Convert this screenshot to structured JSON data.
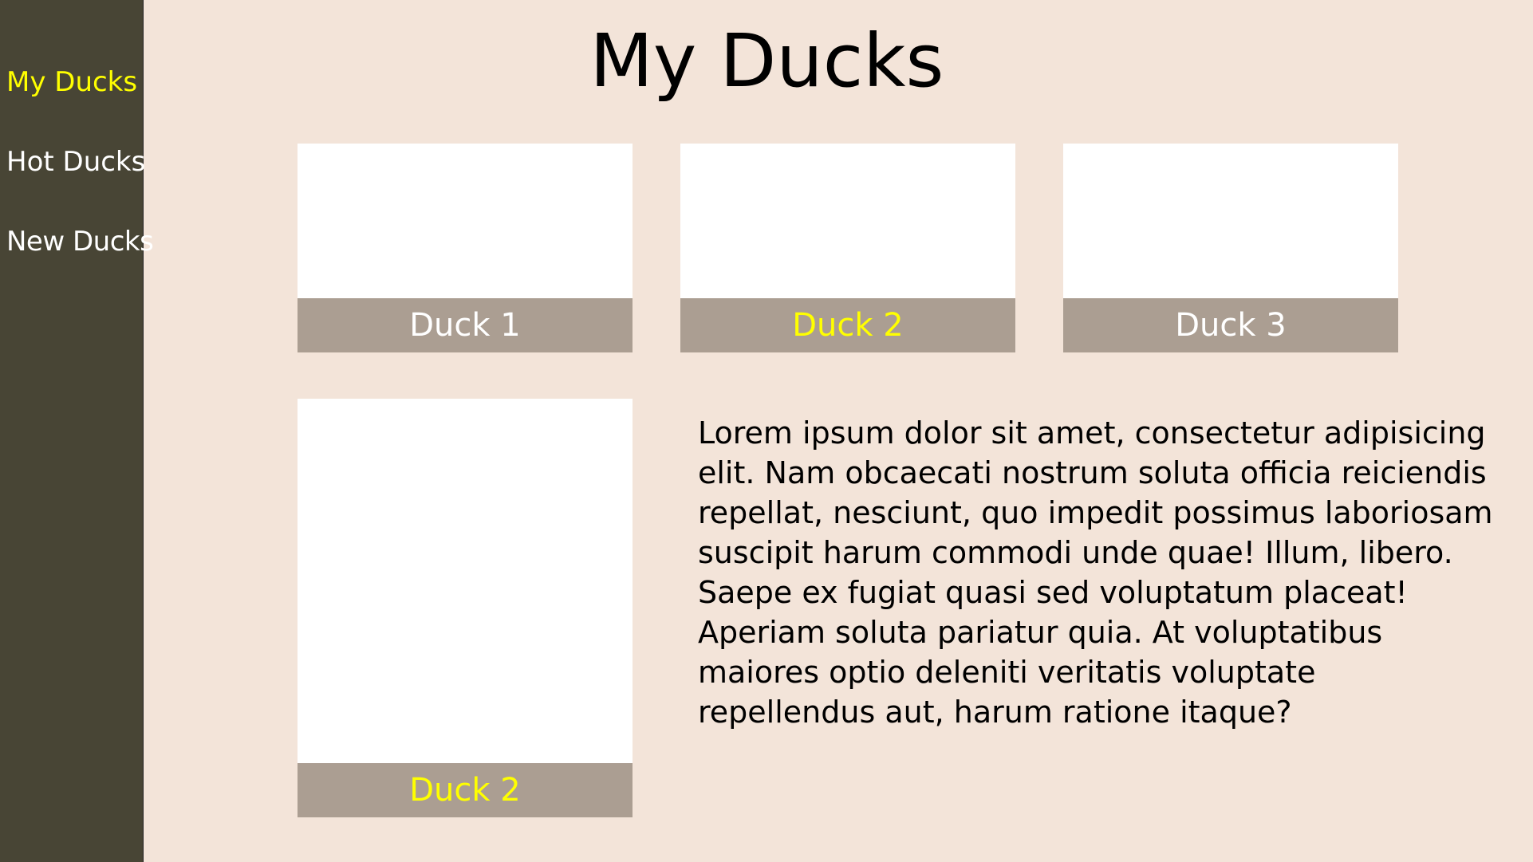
{
  "sidebar": {
    "items": [
      {
        "label": "My Ducks",
        "active": true
      },
      {
        "label": "Hot Ducks",
        "active": false
      },
      {
        "label": "New Ducks",
        "active": false
      }
    ]
  },
  "page": {
    "title": "My Ducks"
  },
  "gallery": {
    "cards": [
      {
        "label": "Duck 1"
      },
      {
        "label": "Duck 2"
      },
      {
        "label": "Duck 3"
      }
    ]
  },
  "detail": {
    "label": "Duck 2",
    "description": "Lorem ipsum dolor sit amet, consectetur adipisicing elit. Nam obcaecati nostrum soluta officia reiciendis repellat, nesciunt, quo impedit possimus laboriosam suscipit harum commodi unde quae! Illum, libero. Saepe ex fugiat quasi sed voluptatum placeat! Aperiam soluta pariatur quia. At voluptatibus maiores optio deleniti veritatis voluptate repellendus aut, harum ratione itaque?"
  },
  "colors": {
    "background": "#f3e4d9",
    "sidebar": "#484535",
    "caption_bar": "#ab9e92",
    "highlight": "#ffff00",
    "text_light": "#ffffff"
  }
}
